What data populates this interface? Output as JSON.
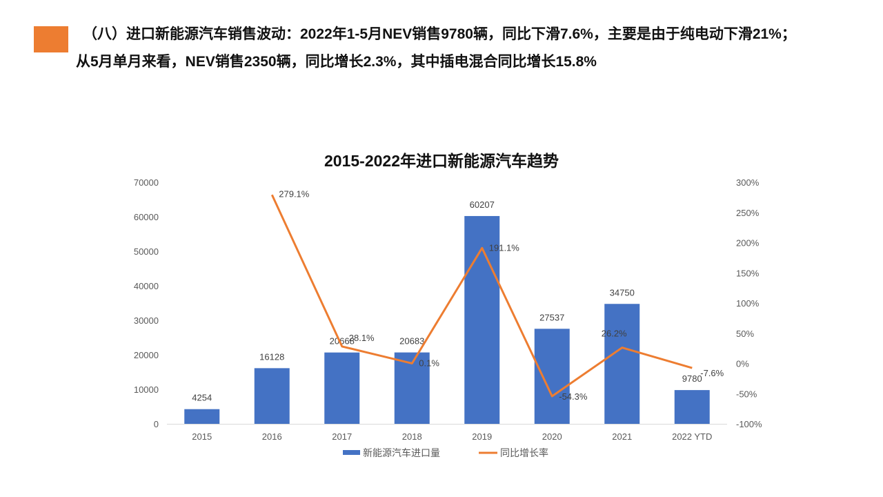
{
  "headline": {
    "line1": "（八）进口新能源汽车销售波动：2022年1-5月NEV销售9780辆，同比下滑7.6%，主要是由于纯电动下滑21%；",
    "line2": "从5月单月来看，NEV销售2350辆，同比增长2.3%，其中插电混合同比增长15.8%"
  },
  "colors": {
    "accent": "#ED7D31",
    "bar": "#4472C4",
    "line": "#ED7D31"
  },
  "chart_data": {
    "type": "bar",
    "title": "2015-2022年进口新能源汽车趋势",
    "categories": [
      "2015",
      "2016",
      "2017",
      "2018",
      "2019",
      "2020",
      "2021",
      "2022 YTD"
    ],
    "series": [
      {
        "name": "新能源汽车进口量",
        "type": "bar",
        "axis": "left",
        "values": [
          4254,
          16128,
          20668,
          20683,
          60207,
          27537,
          34750,
          9780
        ],
        "labels": [
          "4254",
          "16128",
          "20668",
          "20683",
          "60207",
          "27537",
          "34750",
          "9780"
        ]
      },
      {
        "name": "同比增长率",
        "type": "line",
        "axis": "right",
        "values": [
          null,
          279.1,
          28.1,
          0.1,
          191.1,
          -54.3,
          26.2,
          -7.6
        ],
        "labels": [
          "",
          "279.1%",
          "28.1%",
          "0.1%",
          "191.1%",
          "-54.3%",
          "26.2%",
          "-7.6%"
        ]
      }
    ],
    "y_left": {
      "min": 0,
      "max": 70000,
      "step": 10000,
      "ticks": [
        "0",
        "10000",
        "20000",
        "30000",
        "40000",
        "50000",
        "60000",
        "70000"
      ]
    },
    "y_right": {
      "min": -100,
      "max": 300,
      "step": 50,
      "ticks": [
        "-100%",
        "-50%",
        "0%",
        "50%",
        "100%",
        "150%",
        "200%",
        "250%",
        "300%"
      ]
    },
    "legend": [
      "新能源汽车进口量",
      "同比增长率"
    ],
    "legend_position": "bottom",
    "grid": false
  }
}
